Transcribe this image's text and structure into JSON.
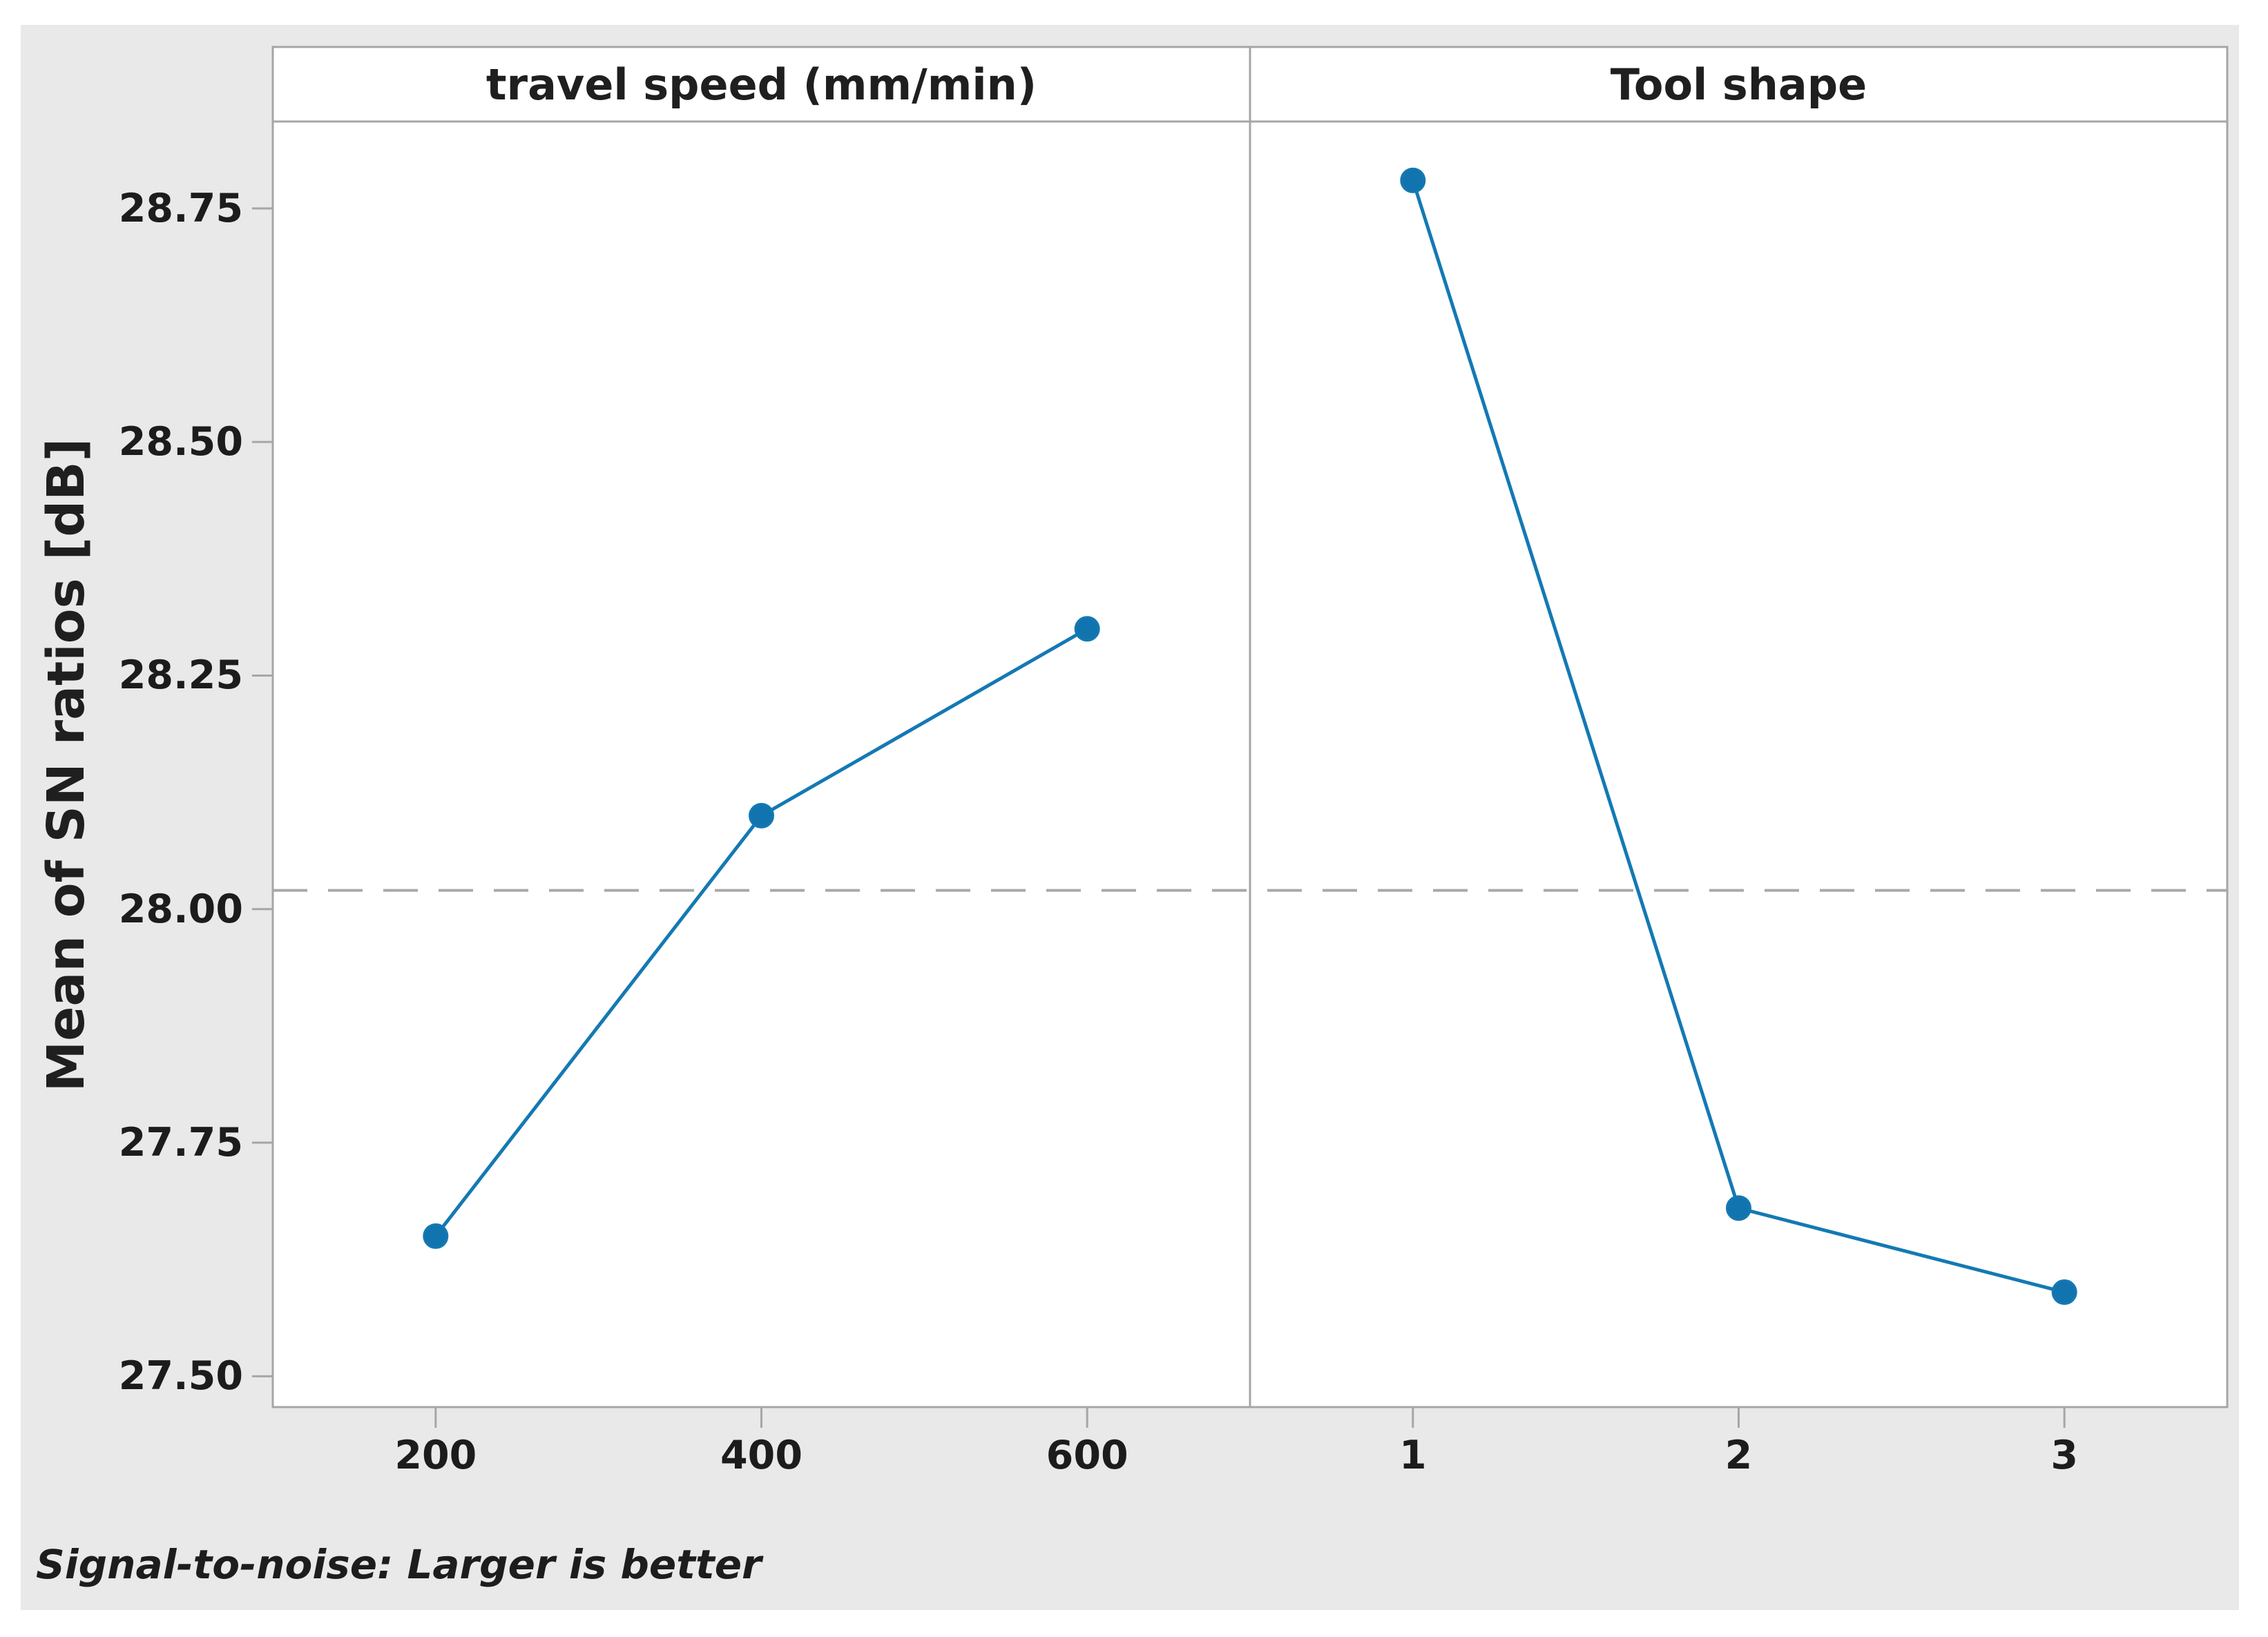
{
  "chart_data": {
    "type": "line",
    "title": "",
    "ylabel": "Mean of SN ratios [dB]",
    "footnote": "Signal-to-noise: Larger is better",
    "panels": [
      {
        "title": "travel speed (mm/min)",
        "categories": [
          "200",
          "400",
          "600"
        ],
        "values": [
          27.65,
          28.1,
          28.3
        ]
      },
      {
        "title": "Tool shape",
        "categories": [
          "1",
          "2",
          "3"
        ],
        "values": [
          28.78,
          27.68,
          27.59
        ]
      }
    ],
    "y_ticks": [
      {
        "value": 28.75,
        "label": "28.75"
      },
      {
        "value": 28.5,
        "label": "28.50"
      },
      {
        "value": 28.25,
        "label": "28.25"
      },
      {
        "value": 28.0,
        "label": "28.00"
      },
      {
        "value": 27.75,
        "label": "27.75"
      },
      {
        "value": 27.5,
        "label": "27.50"
      }
    ],
    "ylim": [
      27.467,
      28.843
    ],
    "reference_line": {
      "value": 28.02,
      "style": "dashed"
    },
    "grid": false,
    "legend": false,
    "colors": {
      "series": "#1479b3",
      "marker": "#1174ae",
      "reference": "#a9a9a9",
      "frame": "#a6a6a6",
      "figure_background": "#e9e9e9",
      "plot_background": "#ffffff",
      "text": "#1c1c1c"
    }
  }
}
